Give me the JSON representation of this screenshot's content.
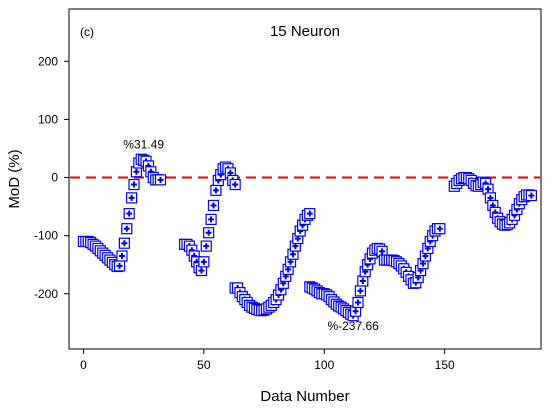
{
  "panel_label": "(c)",
  "chart_data": {
    "type": "scatter",
    "title": "15 Neuron",
    "xlabel": "Data Number",
    "ylabel": "MoD (%)",
    "xlim": [
      -6,
      190
    ],
    "ylim": [
      -295,
      290
    ],
    "xticks": [
      0,
      50,
      100,
      150
    ],
    "yticks": [
      -200,
      -100,
      0,
      100,
      200
    ],
    "reference_line": {
      "y": 0,
      "color": "#e00000",
      "style": "dashed"
    },
    "marker_color": "#0000ee",
    "annotations": [
      {
        "text": "%31.49",
        "x": 25,
        "y": 50
      },
      {
        "text": "%-237.66",
        "x": 112,
        "y": -262
      }
    ],
    "series": [
      {
        "marker": "square-plus",
        "points": [
          [
            0,
            -110
          ],
          [
            1,
            -110
          ],
          [
            2,
            -110
          ],
          [
            3,
            -112
          ],
          [
            4,
            -115
          ],
          [
            5,
            -118
          ],
          [
            6,
            -122
          ],
          [
            7,
            -126
          ],
          [
            8,
            -130
          ],
          [
            9,
            -134
          ],
          [
            10,
            -138
          ],
          [
            11,
            -142
          ],
          [
            12,
            -146
          ],
          [
            13,
            -150
          ],
          [
            14,
            -153
          ],
          [
            15,
            -152
          ],
          [
            16,
            -135
          ],
          [
            17,
            -113
          ],
          [
            18,
            -88
          ],
          [
            19,
            -62
          ],
          [
            20,
            -35
          ],
          [
            21,
            -12
          ],
          [
            22,
            10
          ],
          [
            23,
            25
          ],
          [
            24,
            31.49
          ],
          [
            25,
            30
          ],
          [
            26,
            28
          ],
          [
            27,
            20
          ],
          [
            28,
            10
          ],
          [
            29,
            0
          ],
          [
            30,
            -4
          ],
          [
            31,
            -4
          ],
          [
            32,
            -4
          ],
          [
            42,
            -115
          ],
          [
            43,
            -115
          ],
          [
            44,
            -118
          ],
          [
            45,
            -125
          ],
          [
            46,
            -135
          ],
          [
            47,
            -145
          ],
          [
            48,
            -155
          ],
          [
            49,
            -160
          ],
          [
            50,
            -145
          ],
          [
            51,
            -118
          ],
          [
            52,
            -95
          ],
          [
            53,
            -72
          ],
          [
            54,
            -48
          ],
          [
            55,
            -22
          ],
          [
            56,
            -5
          ],
          [
            57,
            5
          ],
          [
            58,
            15
          ],
          [
            59,
            18
          ],
          [
            60,
            15
          ],
          [
            61,
            8
          ],
          [
            62,
            -5
          ],
          [
            63,
            -12
          ],
          [
            63,
            -190
          ],
          [
            64,
            -190
          ],
          [
            65,
            -198
          ],
          [
            66,
            -205
          ],
          [
            67,
            -210
          ],
          [
            68,
            -215
          ],
          [
            69,
            -220
          ],
          [
            70,
            -223
          ],
          [
            71,
            -225
          ],
          [
            72,
            -227
          ],
          [
            73,
            -228
          ],
          [
            74,
            -229
          ],
          [
            75,
            -228
          ],
          [
            76,
            -226
          ],
          [
            77,
            -223
          ],
          [
            78,
            -220
          ],
          [
            79,
            -215
          ],
          [
            80,
            -210
          ],
          [
            81,
            -202
          ],
          [
            82,
            -193
          ],
          [
            83,
            -182
          ],
          [
            84,
            -170
          ],
          [
            85,
            -158
          ],
          [
            86,
            -145
          ],
          [
            87,
            -132
          ],
          [
            88,
            -118
          ],
          [
            89,
            -105
          ],
          [
            90,
            -92
          ],
          [
            91,
            -82
          ],
          [
            92,
            -72
          ],
          [
            93,
            -65
          ],
          [
            94,
            -62
          ],
          [
            94,
            -188
          ],
          [
            95,
            -190
          ],
          [
            96,
            -192
          ],
          [
            97,
            -195
          ],
          [
            98,
            -198
          ],
          [
            99,
            -200
          ],
          [
            100,
            -200
          ],
          [
            101,
            -202
          ],
          [
            102,
            -205
          ],
          [
            103,
            -210
          ],
          [
            104,
            -214
          ],
          [
            105,
            -218
          ],
          [
            106,
            -221
          ],
          [
            107,
            -223
          ],
          [
            108,
            -226
          ],
          [
            109,
            -229
          ],
          [
            110,
            -232
          ],
          [
            111,
            -235
          ],
          [
            112,
            -237.66
          ],
          [
            113,
            -230
          ],
          [
            114,
            -215
          ],
          [
            115,
            -195
          ],
          [
            116,
            -178
          ],
          [
            117,
            -162
          ],
          [
            118,
            -150
          ],
          [
            119,
            -140
          ],
          [
            120,
            -130
          ],
          [
            121,
            -125
          ],
          [
            122,
            -122
          ],
          [
            123,
            -123
          ],
          [
            124,
            -127
          ],
          [
            125,
            -142
          ],
          [
            126,
            -142
          ],
          [
            127,
            -142
          ],
          [
            128,
            -142
          ],
          [
            129,
            -143
          ],
          [
            130,
            -145
          ],
          [
            131,
            -148
          ],
          [
            132,
            -152
          ],
          [
            133,
            -157
          ],
          [
            134,
            -163
          ],
          [
            135,
            -170
          ],
          [
            136,
            -176
          ],
          [
            137,
            -182
          ],
          [
            138,
            -181
          ],
          [
            139,
            -172
          ],
          [
            140,
            -160
          ],
          [
            141,
            -148
          ],
          [
            142,
            -135
          ],
          [
            143,
            -122
          ],
          [
            144,
            -110
          ],
          [
            145,
            -100
          ],
          [
            146,
            -92
          ],
          [
            147,
            -88
          ],
          [
            148,
            -88
          ],
          [
            154,
            -15
          ],
          [
            155,
            -10
          ],
          [
            156,
            -5
          ],
          [
            157,
            -2
          ],
          [
            158,
            0
          ],
          [
            159,
            0
          ],
          [
            160,
            -2
          ],
          [
            161,
            -5
          ],
          [
            162,
            -10
          ],
          [
            163,
            -14
          ],
          [
            164,
            -15
          ],
          [
            165,
            -12
          ],
          [
            166,
            -8
          ],
          [
            167,
            -10
          ],
          [
            168,
            -20
          ],
          [
            169,
            -35
          ],
          [
            170,
            -48
          ],
          [
            171,
            -60
          ],
          [
            172,
            -70
          ],
          [
            173,
            -76
          ],
          [
            174,
            -80
          ],
          [
            175,
            -82
          ],
          [
            176,
            -81
          ],
          [
            177,
            -78
          ],
          [
            178,
            -72
          ],
          [
            179,
            -65
          ],
          [
            180,
            -55
          ],
          [
            181,
            -45
          ],
          [
            182,
            -38
          ],
          [
            183,
            -33
          ],
          [
            184,
            -30
          ],
          [
            185,
            -30
          ],
          [
            186,
            -31
          ]
        ]
      }
    ]
  }
}
